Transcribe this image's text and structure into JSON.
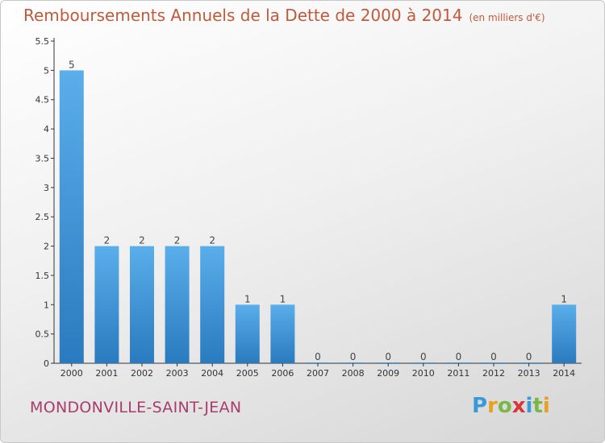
{
  "header": {
    "title": "Remboursements Annuels de la Dette de 2000 à 2014",
    "subtitle": "(en milliers d'€)"
  },
  "footer": {
    "city": "MONDONVILLE-SAINT-JEAN",
    "logo": "Proxiti"
  },
  "colors": {
    "bar_light": "#5aaeea",
    "bar_dark": "#2a7abf",
    "title": "#c05a3a",
    "city": "#a83c6a"
  },
  "chart_data": {
    "type": "bar",
    "categories": [
      "2000",
      "2001",
      "2002",
      "2003",
      "2004",
      "2005",
      "2006",
      "2007",
      "2008",
      "2009",
      "2010",
      "2011",
      "2012",
      "2013",
      "2014"
    ],
    "values": [
      5,
      2,
      2,
      2,
      2,
      1,
      1,
      0,
      0,
      0,
      0,
      0,
      0,
      0,
      1
    ],
    "data_labels": [
      "5",
      "2",
      "2",
      "2",
      "2",
      "1",
      "1",
      "0",
      "0",
      "0",
      "0",
      "0",
      "0",
      "0",
      "1"
    ],
    "yticks": [
      "0",
      "0.5",
      "1",
      "1.5",
      "2",
      "2.5",
      "3",
      "3.5",
      "4",
      "4.5",
      "5",
      "5.5"
    ],
    "ylim": [
      0,
      5.5
    ],
    "grid": false,
    "legend": "none",
    "xlabel": "",
    "ylabel": ""
  }
}
